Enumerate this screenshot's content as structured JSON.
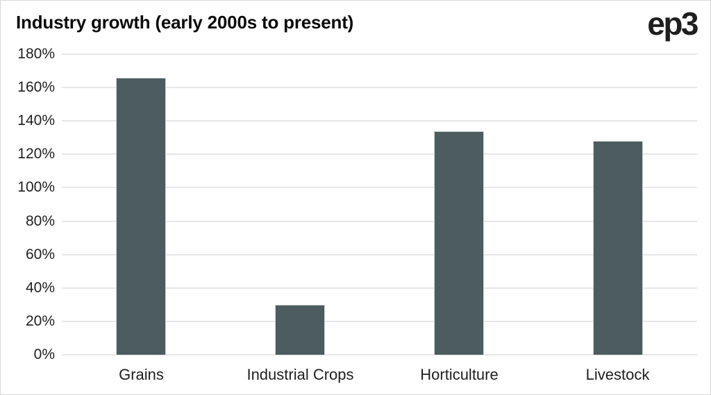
{
  "header": {
    "title": "Industry growth (early 2000s to present)",
    "logo": "ep3"
  },
  "chart_data": {
    "type": "bar",
    "title": "Industry growth (early 2000s to present)",
    "categories": [
      "Grains",
      "Industrial Crops",
      "Horticulture",
      "Livestock"
    ],
    "values": [
      166,
      30,
      134,
      128
    ],
    "unit": "%",
    "xlabel": "",
    "ylabel": "",
    "ylim": [
      0,
      180
    ],
    "ytick_step": 20,
    "ytick_labels": [
      "0%",
      "20%",
      "40%",
      "60%",
      "80%",
      "100%",
      "120%",
      "140%",
      "160%",
      "180%"
    ],
    "grid": true,
    "legend": false,
    "colors": {
      "bar": "#4c5c5f",
      "bar_border": "#cfd7d7",
      "gridline": "#e7e7e7",
      "tick_text": "#1f1f1f",
      "title_text": "#0b0b0b"
    }
  }
}
